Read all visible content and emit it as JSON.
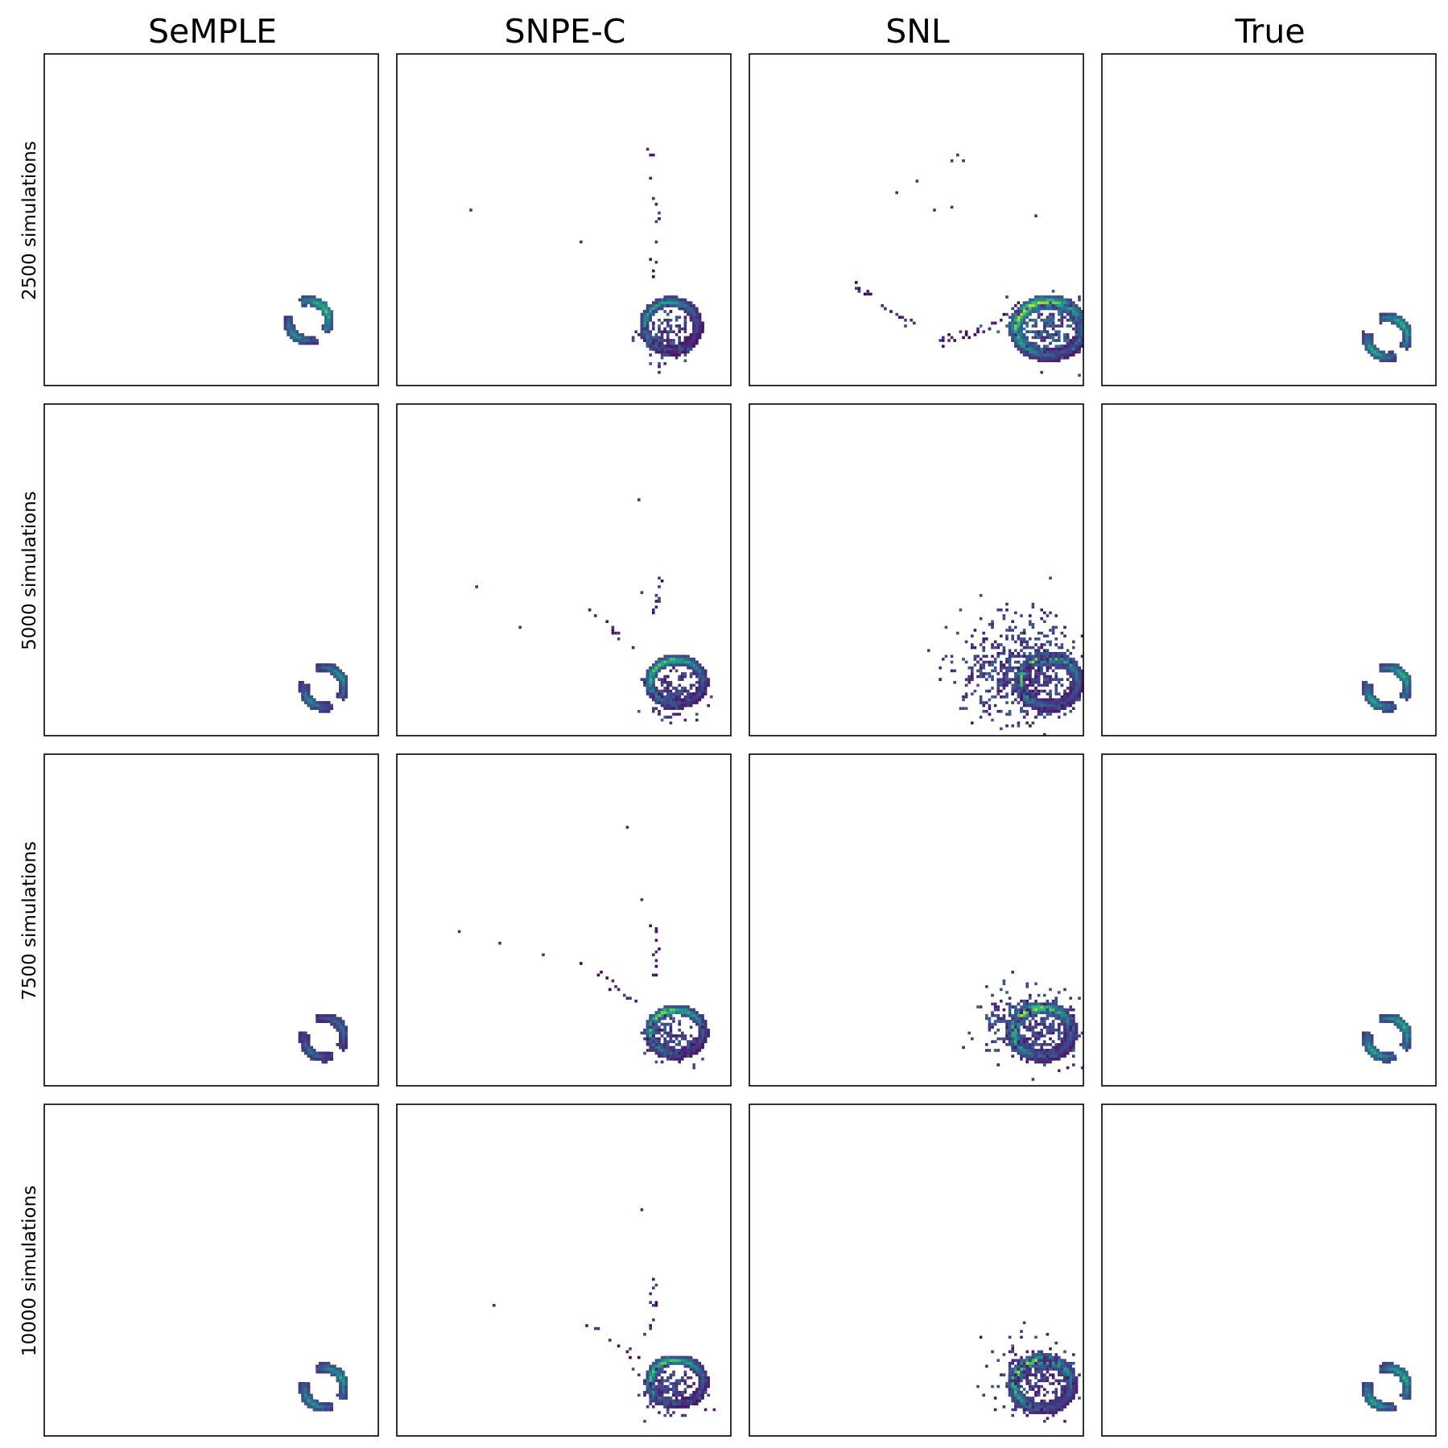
{
  "chart_data": {
    "type": "heatmap",
    "title": "",
    "xlabel": "",
    "ylabel": "",
    "xlim": [
      -1.5,
      1.5
    ],
    "ylim": [
      -1.5,
      1.5
    ],
    "ticks": "none",
    "colormap": "viridis",
    "columns": [
      "SeMPLE",
      "SNPE-C",
      "SNL",
      "True"
    ],
    "rows": [
      "2500 simulations",
      "5000 simulations",
      "7500 simulations",
      "10000 simulations"
    ],
    "panels": [
      {
        "row": "2500 simulations",
        "cells": [
          {
            "column": "SeMPLE",
            "blobs": [
              {
                "shape": "arc",
                "cx": 0.86,
                "cy": -0.9,
                "r": 0.18,
                "width": 0.06,
                "a0": -30,
                "a1": 110,
                "density": 0.8
              },
              {
                "shape": "arc",
                "cx": 0.86,
                "cy": -0.9,
                "r": 0.18,
                "width": 0.06,
                "a0": 170,
                "a1": 290,
                "density": 0.55
              }
            ]
          },
          {
            "column": "SNPE-C",
            "blobs": [
              {
                "shape": "ring",
                "cx": 0.95,
                "cy": -0.95,
                "rx": 0.24,
                "ry": 0.22,
                "width": 0.07,
                "density": 0.6
              },
              {
                "shape": "cloud",
                "cx": 0.9,
                "cy": -1.05,
                "sx": 0.12,
                "sy": 0.12,
                "count": 160,
                "density": 0.3
              },
              {
                "shape": "trail",
                "points": [
                  [
                    0.8,
                    -0.6
                  ],
                  [
                    0.82,
                    -0.25
                  ],
                  [
                    0.85,
                    0.2
                  ],
                  [
                    0.78,
                    0.58
                  ]
                ],
                "count": 12,
                "density": 0.2
              },
              {
                "shape": "dots",
                "points": [
                  [
                    -0.85,
                    0.1
                  ],
                  [
                    0.15,
                    -0.2
                  ],
                  [
                    0.75,
                    0.65
                  ],
                  [
                    0.8,
                    0.2
                  ]
                ],
                "density": 0.15
              }
            ]
          },
          {
            "column": "SNL",
            "blobs": [
              {
                "shape": "ring",
                "cx": 1.18,
                "cy": -0.97,
                "rx": 0.3,
                "ry": 0.24,
                "width": 0.1,
                "density": 0.9
              },
              {
                "shape": "cloud",
                "cx": 1.18,
                "cy": -0.97,
                "sx": 0.16,
                "sy": 0.13,
                "count": 240,
                "density": 0.45
              },
              {
                "shape": "trail",
                "points": [
                  [
                    -0.6,
                    -0.55
                  ],
                  [
                    -0.25,
                    -0.8
                  ],
                  [
                    0.2,
                    -1.1
                  ],
                  [
                    0.6,
                    -1.0
                  ],
                  [
                    0.95,
                    -0.75
                  ]
                ],
                "count": 55,
                "density": 0.2
              },
              {
                "shape": "dots",
                "points": [
                  [
                    0.3,
                    0.55
                  ],
                  [
                    0.35,
                    0.6
                  ],
                  [
                    0.4,
                    0.55
                  ],
                  [
                    -0.2,
                    0.25
                  ],
                  [
                    0.0,
                    0.35
                  ],
                  [
                    0.15,
                    0.1
                  ],
                  [
                    0.3,
                    0.12
                  ],
                  [
                    1.05,
                    0.05
                  ]
                ],
                "density": 0.15
              }
            ]
          },
          {
            "column": "True",
            "blobs": [
              {
                "shape": "arc",
                "cx": 1.05,
                "cy": -1.05,
                "r": 0.18,
                "width": 0.06,
                "a0": -30,
                "a1": 110,
                "density": 0.7
              },
              {
                "shape": "arc",
                "cx": 1.05,
                "cy": -1.05,
                "r": 0.18,
                "width": 0.06,
                "a0": 170,
                "a1": 290,
                "density": 0.65
              }
            ]
          }
        ]
      },
      {
        "row": "5000 simulations",
        "cells": [
          {
            "column": "SeMPLE",
            "blobs": [
              {
                "shape": "arc",
                "cx": 1.0,
                "cy": -1.05,
                "r": 0.18,
                "width": 0.06,
                "a0": -30,
                "a1": 110,
                "density": 0.55
              },
              {
                "shape": "arc",
                "cx": 1.0,
                "cy": -1.05,
                "r": 0.18,
                "width": 0.06,
                "a0": 170,
                "a1": 290,
                "density": 0.5
              }
            ]
          },
          {
            "column": "SNPE-C",
            "blobs": [
              {
                "shape": "ring",
                "cx": 1.0,
                "cy": -1.0,
                "rx": 0.24,
                "ry": 0.2,
                "width": 0.07,
                "density": 0.75
              },
              {
                "shape": "cloud",
                "cx": 0.95,
                "cy": -1.1,
                "sx": 0.12,
                "sy": 0.1,
                "count": 150,
                "density": 0.3
              },
              {
                "shape": "trail",
                "points": [
                  [
                    0.2,
                    -0.3
                  ],
                  [
                    0.45,
                    -0.55
                  ],
                  [
                    0.7,
                    -0.75
                  ]
                ],
                "count": 10,
                "density": 0.2
              },
              {
                "shape": "trail",
                "points": [
                  [
                    0.78,
                    -0.45
                  ],
                  [
                    0.83,
                    -0.2
                  ],
                  [
                    0.85,
                    0.05
                  ]
                ],
                "count": 10,
                "density": 0.2
              },
              {
                "shape": "dots",
                "points": [
                  [
                    -0.8,
                    -0.15
                  ],
                  [
                    -0.4,
                    -0.5
                  ],
                  [
                    0.65,
                    0.65
                  ],
                  [
                    0.7,
                    -0.2
                  ]
                ],
                "density": 0.15
              }
            ]
          },
          {
            "column": "SNL",
            "blobs": [
              {
                "shape": "ring",
                "cx": 1.18,
                "cy": -1.0,
                "rx": 0.26,
                "ry": 0.22,
                "width": 0.09,
                "density": 0.85
              },
              {
                "shape": "cloud",
                "cx": 0.95,
                "cy": -0.9,
                "sx": 0.28,
                "sy": 0.22,
                "count": 700,
                "density": 0.3
              }
            ]
          },
          {
            "column": "True",
            "blobs": [
              {
                "shape": "arc",
                "cx": 1.05,
                "cy": -1.05,
                "r": 0.18,
                "width": 0.06,
                "a0": -30,
                "a1": 110,
                "density": 0.7
              },
              {
                "shape": "arc",
                "cx": 1.05,
                "cy": -1.05,
                "r": 0.18,
                "width": 0.06,
                "a0": 170,
                "a1": 290,
                "density": 0.65
              }
            ]
          }
        ]
      },
      {
        "row": "7500 simulations",
        "cells": [
          {
            "column": "SeMPLE",
            "blobs": [
              {
                "shape": "arc",
                "cx": 1.0,
                "cy": -1.05,
                "r": 0.18,
                "width": 0.06,
                "a0": -30,
                "a1": 110,
                "density": 0.4
              },
              {
                "shape": "arc",
                "cx": 1.0,
                "cy": -1.05,
                "r": 0.18,
                "width": 0.06,
                "a0": 170,
                "a1": 290,
                "density": 0.4
              }
            ]
          },
          {
            "column": "SNPE-C",
            "blobs": [
              {
                "shape": "ring",
                "cx": 1.0,
                "cy": -1.0,
                "rx": 0.24,
                "ry": 0.2,
                "width": 0.07,
                "density": 0.8
              },
              {
                "shape": "cloud",
                "cx": 0.95,
                "cy": -1.08,
                "sx": 0.12,
                "sy": 0.1,
                "count": 160,
                "density": 0.3
              },
              {
                "shape": "trail",
                "points": [
                  [
                    0.1,
                    -0.35
                  ],
                  [
                    0.4,
                    -0.55
                  ],
                  [
                    0.65,
                    -0.75
                  ]
                ],
                "count": 12,
                "density": 0.2
              },
              {
                "shape": "trail",
                "points": [
                  [
                    0.78,
                    -0.6
                  ],
                  [
                    0.82,
                    -0.3
                  ],
                  [
                    0.8,
                    0.0
                  ]
                ],
                "count": 12,
                "density": 0.2
              },
              {
                "shape": "dots",
                "points": [
                  [
                    -0.95,
                    -0.1
                  ],
                  [
                    -0.6,
                    -0.2
                  ],
                  [
                    -0.2,
                    -0.3
                  ],
                  [
                    0.55,
                    0.85
                  ],
                  [
                    0.7,
                    0.2
                  ]
                ],
                "density": 0.15
              }
            ]
          },
          {
            "column": "SNL",
            "blobs": [
              {
                "shape": "ring",
                "cx": 1.12,
                "cy": -1.0,
                "rx": 0.26,
                "ry": 0.22,
                "width": 0.09,
                "density": 0.9
              },
              {
                "shape": "cloud",
                "cx": 1.02,
                "cy": -0.95,
                "sx": 0.22,
                "sy": 0.17,
                "count": 360,
                "density": 0.3
              }
            ]
          },
          {
            "column": "True",
            "blobs": [
              {
                "shape": "arc",
                "cx": 1.05,
                "cy": -1.05,
                "r": 0.18,
                "width": 0.06,
                "a0": -30,
                "a1": 110,
                "density": 0.7
              },
              {
                "shape": "arc",
                "cx": 1.05,
                "cy": -1.05,
                "r": 0.18,
                "width": 0.06,
                "a0": 170,
                "a1": 290,
                "density": 0.65
              }
            ]
          }
        ]
      },
      {
        "row": "10000 simulations",
        "cells": [
          {
            "column": "SeMPLE",
            "blobs": [
              {
                "shape": "arc",
                "cx": 1.0,
                "cy": -1.05,
                "r": 0.18,
                "width": 0.06,
                "a0": -30,
                "a1": 110,
                "density": 0.65
              },
              {
                "shape": "arc",
                "cx": 1.0,
                "cy": -1.05,
                "r": 0.18,
                "width": 0.06,
                "a0": 170,
                "a1": 290,
                "density": 0.6
              }
            ]
          },
          {
            "column": "SNPE-C",
            "blobs": [
              {
                "shape": "ring",
                "cx": 1.0,
                "cy": -1.0,
                "rx": 0.24,
                "ry": 0.2,
                "width": 0.07,
                "density": 0.75
              },
              {
                "shape": "cloud",
                "cx": 0.95,
                "cy": -1.08,
                "sx": 0.12,
                "sy": 0.1,
                "count": 150,
                "density": 0.3
              },
              {
                "shape": "trail",
                "points": [
                  [
                    0.1,
                    -0.4
                  ],
                  [
                    0.4,
                    -0.6
                  ],
                  [
                    0.65,
                    -0.8
                  ]
                ],
                "count": 10,
                "density": 0.2
              },
              {
                "shape": "trail",
                "points": [
                  [
                    0.78,
                    -0.6
                  ],
                  [
                    0.8,
                    -0.3
                  ],
                  [
                    0.78,
                    -0.05
                  ]
                ],
                "count": 12,
                "density": 0.2
              },
              {
                "shape": "dots",
                "points": [
                  [
                    -0.65,
                    -0.3
                  ],
                  [
                    0.68,
                    0.55
                  ]
                ],
                "density": 0.15
              }
            ]
          },
          {
            "column": "SNL",
            "blobs": [
              {
                "shape": "ring",
                "cx": 1.12,
                "cy": -1.02,
                "rx": 0.26,
                "ry": 0.22,
                "width": 0.09,
                "density": 0.9
              },
              {
                "shape": "cloud",
                "cx": 1.05,
                "cy": -0.98,
                "sx": 0.18,
                "sy": 0.15,
                "count": 260,
                "density": 0.3
              },
              {
                "shape": "dots",
                "points": [
                  [
                    0.95,
                    -0.45
                  ],
                  [
                    0.93,
                    -0.55
                  ]
                ],
                "density": 0.15
              }
            ]
          },
          {
            "column": "True",
            "blobs": [
              {
                "shape": "arc",
                "cx": 1.05,
                "cy": -1.05,
                "r": 0.18,
                "width": 0.06,
                "a0": -30,
                "a1": 110,
                "density": 0.7
              },
              {
                "shape": "arc",
                "cx": 1.05,
                "cy": -1.05,
                "r": 0.18,
                "width": 0.06,
                "a0": 170,
                "a1": 290,
                "density": 0.65
              }
            ]
          }
        ]
      }
    ]
  }
}
